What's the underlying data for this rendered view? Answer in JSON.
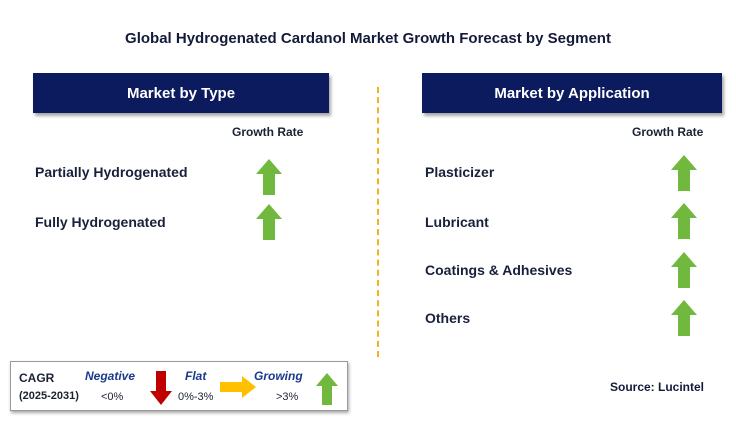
{
  "title": "Global Hydrogenated Cardanol Market Growth Forecast by Segment",
  "left_panel": {
    "header": "Market by Type",
    "growth_label": "Growth Rate",
    "items": [
      {
        "label": "Partially Hydrogenated",
        "trend": "growing"
      },
      {
        "label": "Fully Hydrogenated",
        "trend": "growing"
      }
    ]
  },
  "right_panel": {
    "header": "Market by Application",
    "growth_label": "Growth Rate",
    "items": [
      {
        "label": "Plasticizer",
        "trend": "growing"
      },
      {
        "label": "Lubricant",
        "trend": "growing"
      },
      {
        "label": "Coatings & Adhesives",
        "trend": "growing"
      },
      {
        "label": "Others",
        "trend": "growing"
      }
    ]
  },
  "legend": {
    "cagr_label": "CAGR",
    "period": "(2025-2031)",
    "negative": {
      "label": "Negative",
      "range": "<0%",
      "icon": "down-arrow-icon",
      "color": "#c00000"
    },
    "flat": {
      "label": "Flat",
      "range": "0%-3%",
      "icon": "right-arrow-icon",
      "color": "#ffc000"
    },
    "growing": {
      "label": "Growing",
      "range": ">3%",
      "icon": "up-arrow-icon",
      "color": "#70b83e"
    }
  },
  "source": "Source: Lucintel",
  "colors": {
    "header_bg": "#0c1a5e",
    "divider": "#f2b21c",
    "growing": "#70b83e"
  }
}
